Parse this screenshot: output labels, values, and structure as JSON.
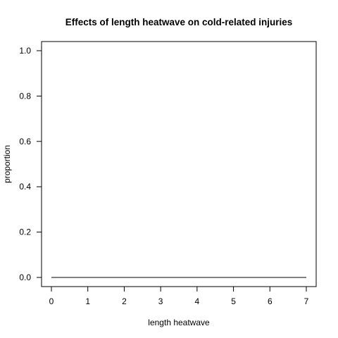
{
  "chart_data": {
    "type": "line",
    "title": "Effects of length heatwave on cold-related injuries",
    "xlabel": "length heatwave",
    "ylabel": "proportion",
    "x": [
      0,
      1,
      2,
      3,
      4,
      5,
      6,
      7
    ],
    "series": [
      {
        "values": [
          0,
          0,
          0,
          0,
          0,
          0,
          0,
          0
        ],
        "color": "#000000"
      }
    ],
    "xlim": [
      0,
      7
    ],
    "ylim": [
      0,
      1
    ],
    "xticks": [
      "0",
      "1",
      "2",
      "3",
      "4",
      "5",
      "6",
      "7"
    ],
    "yticks": [
      "0.0",
      "0.2",
      "0.4",
      "0.6",
      "0.8",
      "1.0"
    ],
    "grid": false,
    "legend": "none"
  }
}
